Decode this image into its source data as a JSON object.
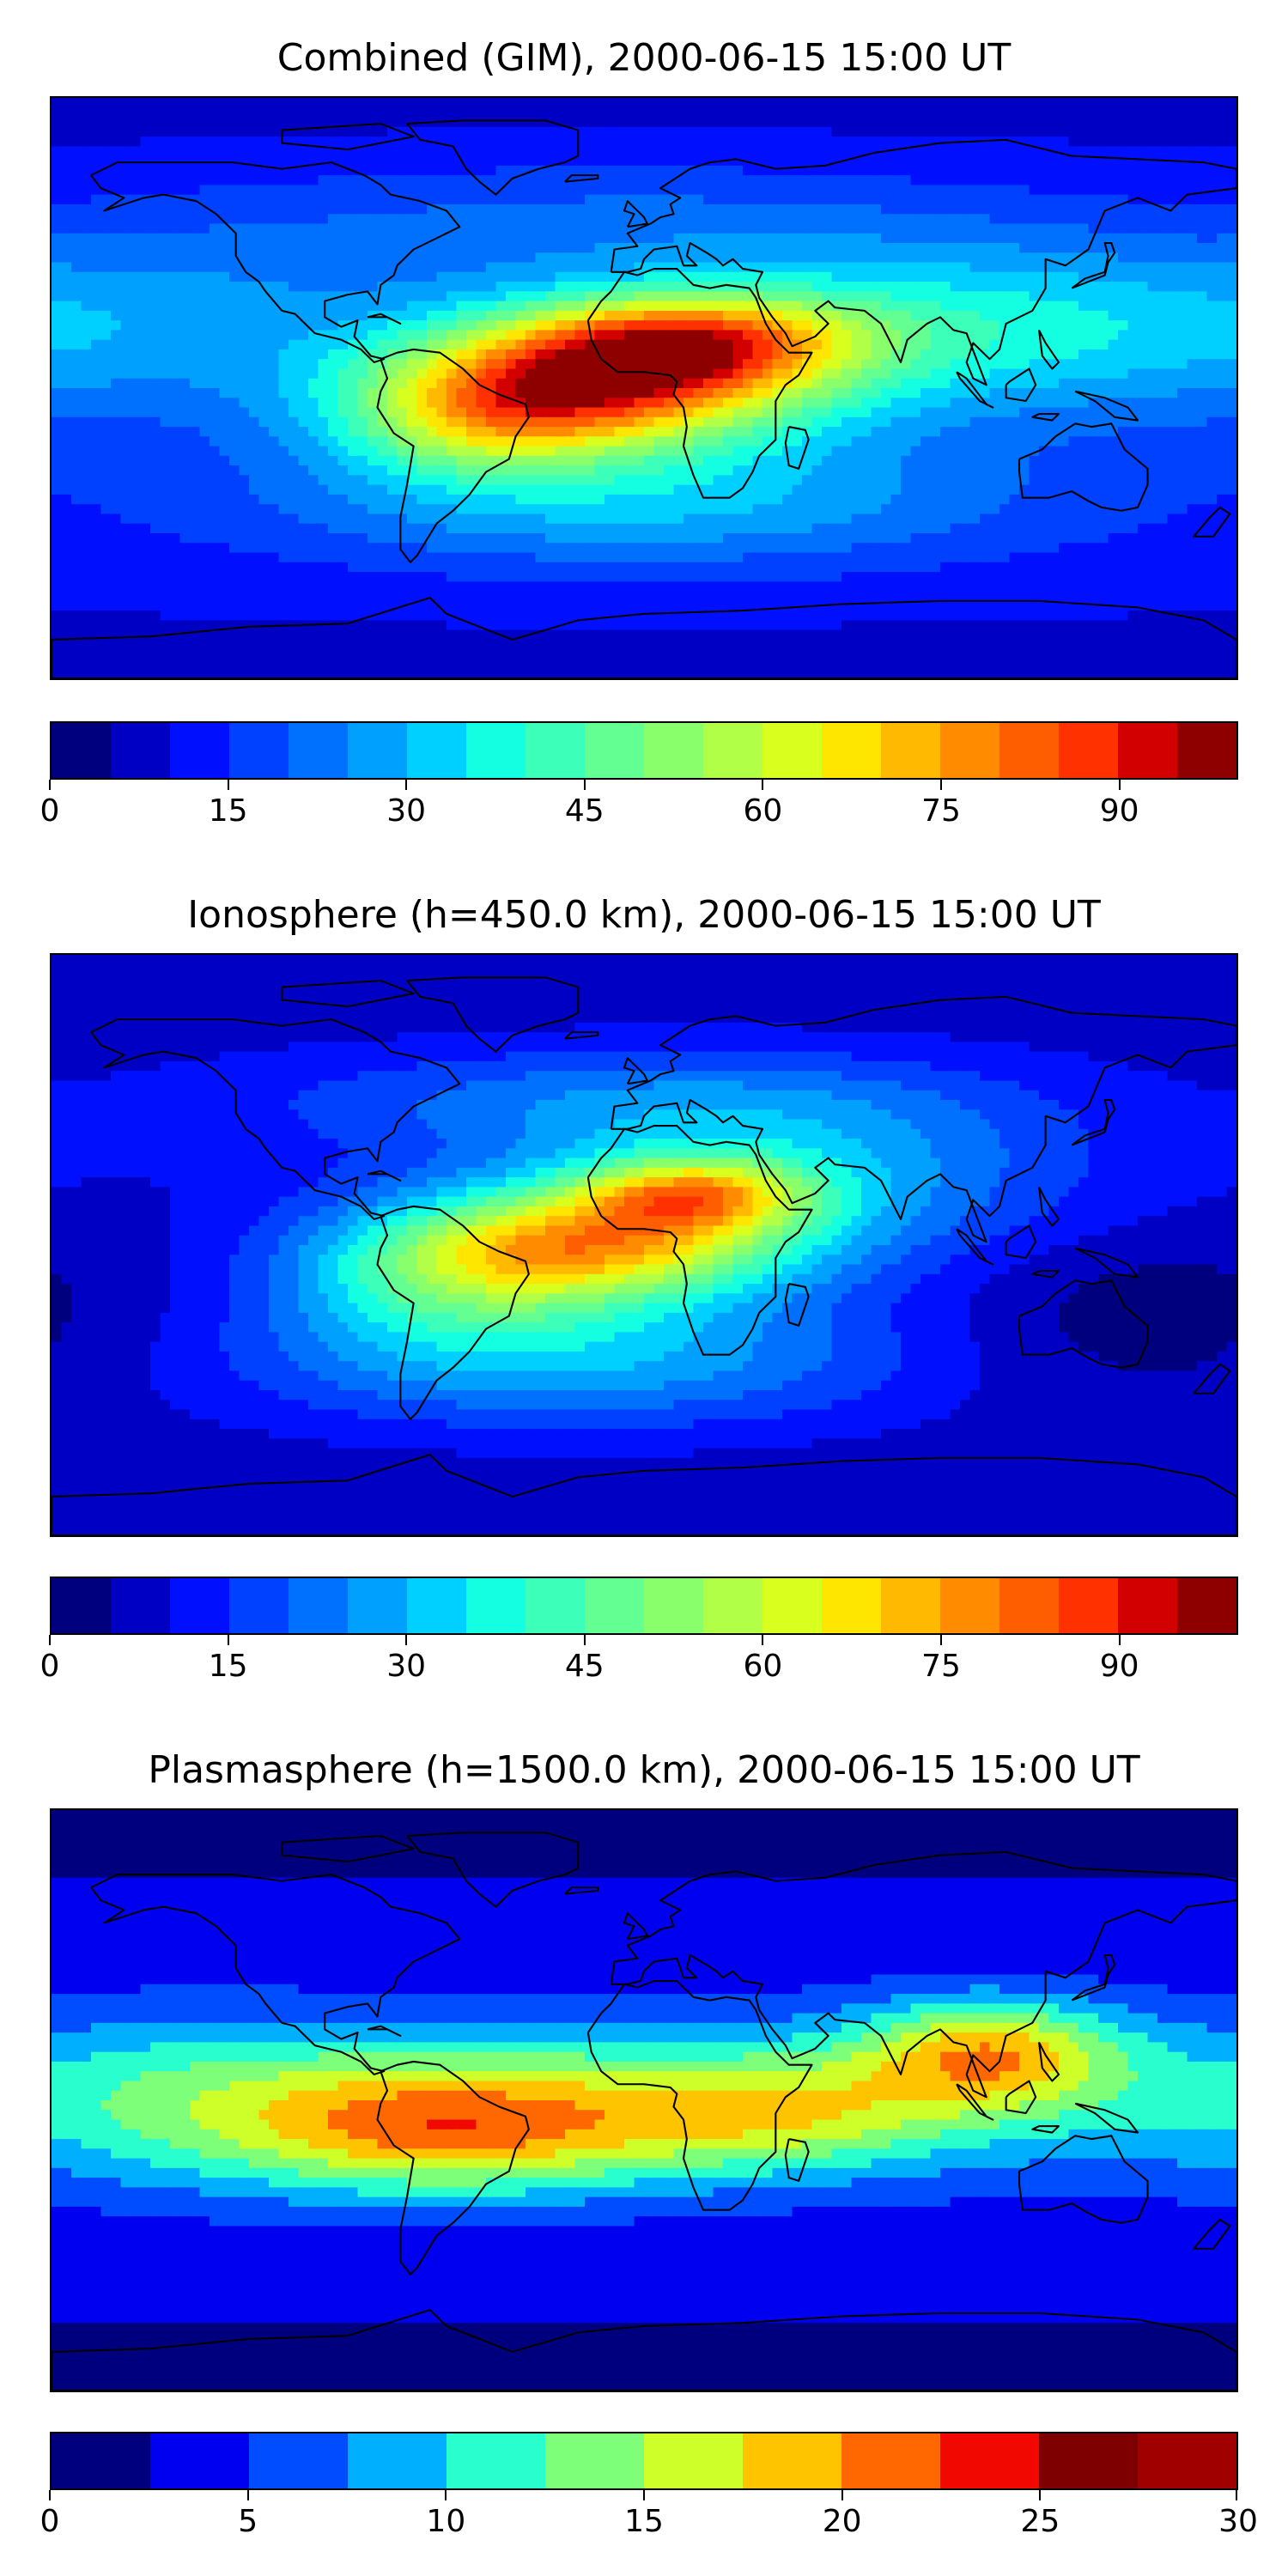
{
  "panels": [
    {
      "title": "Combined (GIM), 2000-06-15 15:00 UT",
      "colorbar": {
        "vmin": 0,
        "vmax": 100,
        "step": 5,
        "ticks": [
          "0",
          "15",
          "30",
          "45",
          "60",
          "75",
          "90"
        ],
        "tick_values": [
          0,
          15,
          30,
          45,
          60,
          75,
          90
        ],
        "colors": [
          "#00007f",
          "#0000c4",
          "#0010ff",
          "#0040ff",
          "#0070ff",
          "#00a0ff",
          "#00d0ff",
          "#14ffe2",
          "#3cffba",
          "#63ff93",
          "#8aff6c",
          "#b1ff46",
          "#d9ff1e",
          "#ffe600",
          "#ffb900",
          "#ff8c00",
          "#ff5e00",
          "#ff3100",
          "#d30000",
          "#8e0000"
        ]
      },
      "field": {
        "base": 14,
        "blobs": [
          {
            "lon": -15,
            "lat": 2,
            "amp": 70,
            "rlon": 45,
            "rlat": 14
          },
          {
            "lon": 15,
            "lat": 16,
            "amp": 40,
            "rlon": 35,
            "rlat": 10
          },
          {
            "lon": -50,
            "lat": -12,
            "amp": 25,
            "rlon": 30,
            "rlat": 12
          },
          {
            "lon": 90,
            "lat": 18,
            "amp": 22,
            "rlon": 60,
            "rlat": 18
          },
          {
            "lon": -150,
            "lat": 20,
            "amp": 12,
            "rlon": 60,
            "rlat": 20
          },
          {
            "lon": 0,
            "lat": -35,
            "amp": 18,
            "rlon": 80,
            "rlat": 15
          },
          {
            "lon": -10,
            "lat": 50,
            "amp": 10,
            "rlon": 90,
            "rlat": 15
          }
        ]
      }
    },
    {
      "title": "Ionosphere  (h=450.0 km), 2000-06-15 15:00 UT",
      "colorbar": {
        "vmin": 0,
        "vmax": 100,
        "step": 5,
        "ticks": [
          "0",
          "15",
          "30",
          "45",
          "60",
          "75",
          "90"
        ],
        "tick_values": [
          0,
          15,
          30,
          45,
          60,
          75,
          90
        ],
        "colors": [
          "#00007f",
          "#0000c4",
          "#0010ff",
          "#0040ff",
          "#0070ff",
          "#00a0ff",
          "#00d0ff",
          "#14ffe2",
          "#3cffba",
          "#63ff93",
          "#8aff6c",
          "#b1ff46",
          "#d9ff1e",
          "#ffe600",
          "#ffb900",
          "#ff8c00",
          "#ff5e00",
          "#ff3100",
          "#d30000",
          "#8e0000"
        ]
      },
      "field": {
        "base": 10,
        "blobs": [
          {
            "lon": -15,
            "lat": 0,
            "amp": 50,
            "rlon": 40,
            "rlat": 12
          },
          {
            "lon": 15,
            "lat": 16,
            "amp": 40,
            "rlon": 25,
            "rlat": 8
          },
          {
            "lon": -60,
            "lat": -10,
            "amp": 25,
            "rlon": 35,
            "rlat": 15
          },
          {
            "lon": 40,
            "lat": 20,
            "amp": 20,
            "rlon": 60,
            "rlat": 20
          },
          {
            "lon": -20,
            "lat": -35,
            "amp": 20,
            "rlon": 70,
            "rlat": 15
          },
          {
            "lon": -10,
            "lat": 45,
            "amp": 12,
            "rlon": 80,
            "rlat": 12
          },
          {
            "lon": 150,
            "lat": -20,
            "amp": -8,
            "rlon": 50,
            "rlat": 20
          }
        ]
      }
    },
    {
      "title": "Plasmasphere (h=1500.0 km), 2000-06-15 15:00 UT",
      "colorbar": {
        "vmin": 0,
        "vmax": 30,
        "step": 2.5,
        "ticks": [
          "0",
          "5",
          "10",
          "15",
          "20",
          "25",
          "30"
        ],
        "tick_values": [
          0,
          5,
          10,
          15,
          20,
          25,
          30
        ],
        "colors": [
          "#00007f",
          "#0000f1",
          "#004cff",
          "#00b0ff",
          "#29ffce",
          "#7dff7a",
          "#ceff29",
          "#ffc400",
          "#ff6800",
          "#f10800",
          "#7f0000",
          "#a00000"
        ]
      },
      "field": {
        "base": 3.5,
        "blobs": [
          {
            "lon": 105,
            "lat": 15,
            "amp": 12,
            "rlon": 28,
            "rlat": 12
          },
          {
            "lon": -60,
            "lat": -10,
            "amp": 11,
            "rlon": 45,
            "rlat": 14
          },
          {
            "lon": 0,
            "lat": 0,
            "amp": 9,
            "rlon": 120,
            "rlat": 18
          },
          {
            "lon": 40,
            "lat": -5,
            "amp": 6,
            "rlon": 35,
            "rlat": 12
          },
          {
            "lon": -150,
            "lat": 0,
            "amp": 5,
            "rlon": 50,
            "rlat": 20
          }
        ]
      }
    }
  ]
}
